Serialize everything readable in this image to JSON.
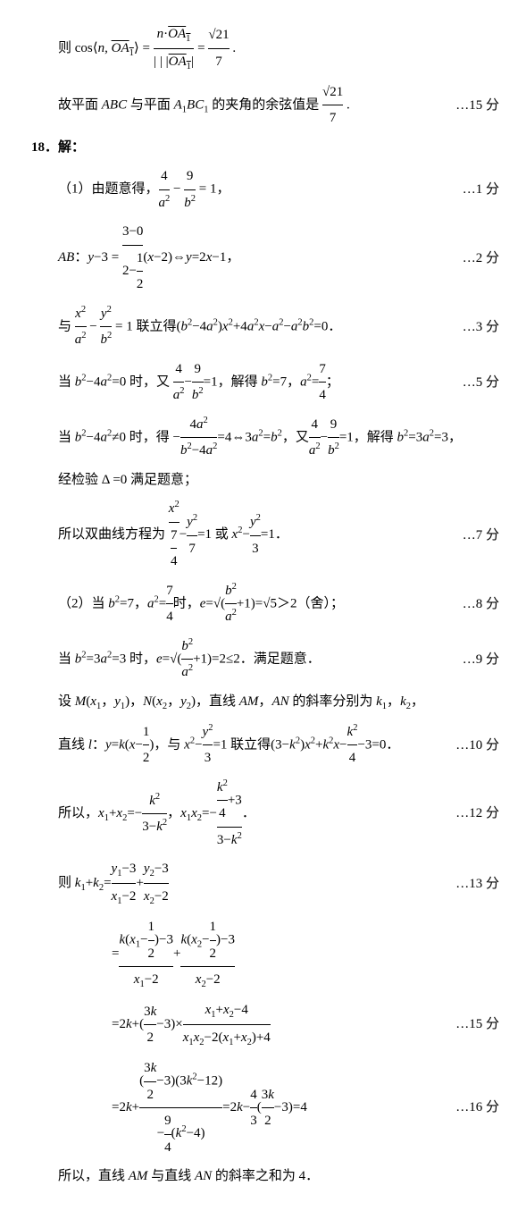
{
  "lines": [
    {
      "content": "则 cos⟨<span class='math'>n</span>, <span style='text-decoration:overline'><span class='math'>OA</span><sub>1</sub></span>⟩ = <span style='display:inline-block;text-align:center;vertical-align:middle'><span style='border-bottom:1px solid;display:block;padding:0 4px'><span class='math'>n</span>·<span style='text-decoration:overline'><span class='math'>OA</span><sub>1</sub></span></span><span style='display:block'>| | |<span style='text-decoration:overline'><span class='math'>OA</span><sub>1</sub></span>|</span></span> = <span style='display:inline-block;text-align:center;vertical-align:middle'><span style='border-bottom:1px solid;display:block'>√21</span><span>7</span></span> .",
      "score": ""
    },
    {
      "content": "故平面 <span class='math'>ABC</span> 与平面 <span class='math'>A</span><sub>1</sub><span class='math'>BC</span><sub>1</sub> 的夹角的余弦值是 <span style='display:inline-block;text-align:center;vertical-align:middle'><span style='border-bottom:1px solid;display:block'>√21</span><span>7</span></span> .",
      "score": "…15 分"
    },
    {
      "content": "<span class='qnum'>18．解：</span>",
      "score": "",
      "q": true
    },
    {
      "content": "（1）由题意得，<span style='display:inline-block;text-align:center;vertical-align:middle'><span style='border-bottom:1px solid;display:block'>4</span><span><span class='math'>a</span><sup>2</sup></span></span> − <span style='display:inline-block;text-align:center;vertical-align:middle'><span style='border-bottom:1px solid;display:block'>9</span><span><span class='math'>b</span><sup>2</sup></span></span> = 1，",
      "score": "…1 分"
    },
    {
      "content": "<span class='math'>AB</span>：<span class='math'>y</span>−3 = <span style='display:inline-block;text-align:center;vertical-align:middle'><span style='border-bottom:1px solid;display:block'>3−0</span><span>2−<span style='display:inline-block;text-align:center;vertical-align:middle'><span style='border-bottom:1px solid;display:block'>1</span><span>2</span></span></span></span>(<span class='math'>x</span>−2)⇔<span class='math'>y</span>=2<span class='math'>x</span>−1，",
      "score": "…2 分"
    },
    {
      "content": "与 <span style='display:inline-block;text-align:center;vertical-align:middle'><span style='border-bottom:1px solid;display:block'><span class='math'>x</span><sup>2</sup></span><span><span class='math'>a</span><sup>2</sup></span></span> − <span style='display:inline-block;text-align:center;vertical-align:middle'><span style='border-bottom:1px solid;display:block'><span class='math'>y</span><sup>2</sup></span><span><span class='math'>b</span><sup>2</sup></span></span> = 1 联立得(<span class='math'>b</span><sup>2</sup>−4<span class='math'>a</span><sup>2</sup>)<span class='math'>x</span><sup>2</sup>+4<span class='math'>a</span><sup>2</sup><span class='math'>x</span>−<span class='math'>a</span><sup>2</sup>−<span class='math'>a</span><sup>2</sup><span class='math'>b</span><sup>2</sup>=0．",
      "score": "…3 分"
    },
    {
      "content": "当 <span class='math'>b</span><sup>2</sup>−4<span class='math'>a</span><sup>2</sup>=0 时，又 <span style='display:inline-block;text-align:center;vertical-align:middle'><span style='border-bottom:1px solid;display:block'>4</span><span><span class='math'>a</span><sup>2</sup></span></span>−<span style='display:inline-block;text-align:center;vertical-align:middle'><span style='border-bottom:1px solid;display:block'>9</span><span><span class='math'>b</span><sup>2</sup></span></span>=1，解得 <span class='math'>b</span><sup>2</sup>=7，<span class='math'>a</span><sup>2</sup>=<span style='display:inline-block;text-align:center;vertical-align:middle'><span style='border-bottom:1px solid;display:block'>7</span><span>4</span></span>；",
      "score": "…5 分"
    },
    {
      "content": "当 <span class='math'>b</span><sup>2</sup>−4<span class='math'>a</span><sup>2</sup>≠0 时，得 −<span style='display:inline-block;text-align:center;vertical-align:middle'><span style='border-bottom:1px solid;display:block'>4<span class='math'>a</span><sup>2</sup></span><span><span class='math'>b</span><sup>2</sup>−4<span class='math'>a</span><sup>2</sup></span></span>=4⇔3<span class='math'>a</span><sup>2</sup>=<span class='math'>b</span><sup>2</sup>，又<span style='display:inline-block;text-align:center;vertical-align:middle'><span style='border-bottom:1px solid;display:block'>4</span><span><span class='math'>a</span><sup>2</sup></span></span>−<span style='display:inline-block;text-align:center;vertical-align:middle'><span style='border-bottom:1px solid;display:block'>9</span><span><span class='math'>b</span><sup>2</sup></span></span>=1，解得 <span class='math'>b</span><sup>2</sup>=3<span class='math'>a</span><sup>2</sup>=3，",
      "score": ""
    },
    {
      "content": "经检验 Δ =0 满足题意；",
      "score": ""
    },
    {
      "content": "所以双曲线方程为 <span style='display:inline-block;text-align:center;vertical-align:middle'><span style='border-bottom:1px solid;display:block'><span class='math'>x</span><sup>2</sup></span><span><span style='display:inline-block;text-align:center;vertical-align:middle'><span style='border-bottom:1px solid;display:block'>7</span><span>4</span></span></span></span>−<span style='display:inline-block;text-align:center;vertical-align:middle'><span style='border-bottom:1px solid;display:block'><span class='math'>y</span><sup>2</sup></span><span>7</span></span>=1 或 <span class='math'>x</span><sup>2</sup>−<span style='display:inline-block;text-align:center;vertical-align:middle'><span style='border-bottom:1px solid;display:block'><span class='math'>y</span><sup>2</sup></span><span>3</span></span>=1．",
      "score": "…7 分"
    },
    {
      "content": "（2）当 <span class='math'>b</span><sup>2</sup>=7，<span class='math'>a</span><sup>2</sup>=<span style='display:inline-block;text-align:center;vertical-align:middle'><span style='border-bottom:1px solid;display:block'>7</span><span>4</span></span>时，<span class='math'>e</span>=√(<span style='display:inline-block;text-align:center;vertical-align:middle'><span style='border-bottom:1px solid;display:block'><span class='math'>b</span><sup>2</sup></span><span><span class='math'>a</span><sup>2</sup></span></span>+1)=√5＞2（舍）；",
      "score": "…8 分"
    },
    {
      "content": "当 <span class='math'>b</span><sup>2</sup>=3<span class='math'>a</span><sup>2</sup>=3 时，<span class='math'>e</span>=√(<span style='display:inline-block;text-align:center;vertical-align:middle'><span style='border-bottom:1px solid;display:block'><span class='math'>b</span><sup>2</sup></span><span><span class='math'>a</span><sup>2</sup></span></span>+1)=2≤2．满足题意．",
      "score": "…9 分"
    },
    {
      "content": "设 <span class='math'>M</span>(<span class='math'>x</span><sub>1</sub>，<span class='math'>y</span><sub>1</sub>)，<span class='math'>N</span>(<span class='math'>x</span><sub>2</sub>，<span class='math'>y</span><sub>2</sub>)，直线 <span class='math'>AM</span>，<span class='math'>AN</span> 的斜率分别为 <span class='math'>k</span><sub>1</sub>，<span class='math'>k</span><sub>2</sub>，",
      "score": ""
    },
    {
      "content": "直线 <span class='math'>l</span>：<span class='math'>y</span>=<span class='math'>k</span>(<span class='math'>x</span>−<span style='display:inline-block;text-align:center;vertical-align:middle'><span style='border-bottom:1px solid;display:block'>1</span><span>2</span></span>)，与 <span class='math'>x</span><sup>2</sup>−<span style='display:inline-block;text-align:center;vertical-align:middle'><span style='border-bottom:1px solid;display:block'><span class='math'>y</span><sup>2</sup></span><span>3</span></span>=1 联立得(3−<span class='math'>k</span><sup>2</sup>)<span class='math'>x</span><sup>2</sup>+<span class='math'>k</span><sup>2</sup><span class='math'>x</span>−<span style='display:inline-block;text-align:center;vertical-align:middle'><span style='border-bottom:1px solid;display:block'><span class='math'>k</span><sup>2</sup></span><span>4</span></span>−3=0．",
      "score": "…10 分"
    },
    {
      "content": "所以，<span class='math'>x</span><sub>1</sub>+<span class='math'>x</span><sub>2</sub>=−<span style='display:inline-block;text-align:center;vertical-align:middle'><span style='border-bottom:1px solid;display:block'><span class='math'>k</span><sup>2</sup></span><span>3−<span class='math'>k</span><sup>2</sup></span></span>，<span class='math'>x</span><sub>1</sub><span class='math'>x</span><sub>2</sub>=−<span style='display:inline-block;text-align:center;vertical-align:middle'><span style='border-bottom:1px solid;display:block'><span style='display:inline-block;text-align:center;vertical-align:middle'><span style='border-bottom:1px solid;display:block'><span class='math'>k</span><sup>2</sup></span><span>4</span></span>+3</span><span>3−<span class='math'>k</span><sup>2</sup></span></span>．",
      "score": "…12 分"
    },
    {
      "content": "则 <span class='math'>k</span><sub>1</sub>+<span class='math'>k</span><sub>2</sub>=<span style='display:inline-block;text-align:center;vertical-align:middle'><span style='border-bottom:1px solid;display:block'><span class='math'>y</span><sub>1</sub>−3</span><span><span class='math'>x</span><sub>1</sub>−2</span></span>+<span style='display:inline-block;text-align:center;vertical-align:middle'><span style='border-bottom:1px solid;display:block'><span class='math'>y</span><sub>2</sub>−3</span><span><span class='math'>x</span><sub>2</sub>−2</span></span>",
      "score": "…13 分"
    },
    {
      "content": "<span style='padding-left:60px'>=<span style='display:inline-block;text-align:center;vertical-align:middle'><span style='border-bottom:1px solid;display:block'><span class='math'>k</span>(<span class='math'>x</span><sub>1</sub>−<span style='display:inline-block;text-align:center;vertical-align:middle'><span style='border-bottom:1px solid;display:block'>1</span><span>2</span></span>)−3</span><span><span class='math'>x</span><sub>1</sub>−2</span></span>+<span style='display:inline-block;text-align:center;vertical-align:middle'><span style='border-bottom:1px solid;display:block'><span class='math'>k</span>(<span class='math'>x</span><sub>2</sub>−<span style='display:inline-block;text-align:center;vertical-align:middle'><span style='border-bottom:1px solid;display:block'>1</span><span>2</span></span>)−3</span><span><span class='math'>x</span><sub>2</sub>−2</span></span></span>",
      "score": ""
    },
    {
      "content": "<span style='padding-left:60px'>=2<span class='math'>k</span>+(<span style='display:inline-block;text-align:center;vertical-align:middle'><span style='border-bottom:1px solid;display:block'>3<span class='math'>k</span></span><span>2</span></span>−3)×<span style='display:inline-block;text-align:center;vertical-align:middle'><span style='border-bottom:1px solid;display:block'><span class='math'>x</span><sub>1</sub>+<span class='math'>x</span><sub>2</sub>−4</span><span><span class='math'>x</span><sub>1</sub><span class='math'>x</span><sub>2</sub>−2(<span class='math'>x</span><sub>1</sub>+<span class='math'>x</span><sub>2</sub>)+4</span></span></span>",
      "score": "…15 分"
    },
    {
      "content": "<span style='padding-left:60px'>=2<span class='math'>k</span>+<span style='display:inline-block;text-align:center;vertical-align:middle'><span style='border-bottom:1px solid;display:block'>(<span style='display:inline-block;text-align:center;vertical-align:middle'><span style='border-bottom:1px solid;display:block'>3<span class='math'>k</span></span><span>2</span></span>−3)(3<span class='math'>k</span><sup>2</sup>−12)</span><span>−<span style='display:inline-block;text-align:center;vertical-align:middle'><span style='border-bottom:1px solid;display:block'>9</span><span>4</span></span>(<span class='math'>k</span><sup>2</sup>−4)</span></span>=2<span class='math'>k</span>−<span style='display:inline-block;text-align:center;vertical-align:middle'><span style='border-bottom:1px solid;display:block'>4</span><span>3</span></span>(<span style='display:inline-block;text-align:center;vertical-align:middle'><span style='border-bottom:1px solid;display:block'>3<span class='math'>k</span></span><span>2</span></span>−3)=4</span>",
      "score": "…16 分"
    },
    {
      "content": "所以，直线 <span class='math'>AM</span> 与直线 <span class='math'>AN</span> 的斜率之和为 4．",
      "score": ""
    }
  ]
}
